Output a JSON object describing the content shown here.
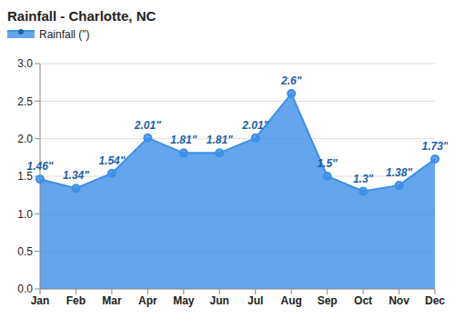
{
  "chart_data": {
    "type": "area",
    "title": "Rainfall - Charlotte, NC",
    "categories": [
      "Jan",
      "Feb",
      "Mar",
      "Apr",
      "May",
      "Jun",
      "Jul",
      "Aug",
      "Sep",
      "Oct",
      "Nov",
      "Dec"
    ],
    "series": [
      {
        "name": "Rainfall (\")",
        "color": "#3d8fe6",
        "values": [
          1.46,
          1.34,
          1.54,
          2.01,
          1.81,
          1.81,
          2.01,
          2.6,
          1.5,
          1.3,
          1.38,
          1.73
        ],
        "value_labels": [
          "1.46\"",
          "1.34\"",
          "1.54\"",
          "2.01\"",
          "1.81\"",
          "1.81\"",
          "2.01\"",
          "2.6\"",
          "1.5\"",
          "1.3\"",
          "1.38\"",
          "1.73\""
        ]
      }
    ],
    "ylim": [
      0,
      3
    ],
    "yticks": [
      {
        "value": 0,
        "label": "0.0"
      },
      {
        "value": 0.5,
        "label": "0.5"
      },
      {
        "value": 1,
        "label": "1.0"
      },
      {
        "value": 1.5,
        "label": "1.5"
      },
      {
        "value": 2,
        "label": "2.0"
      },
      {
        "value": 2.5,
        "label": "2.5"
      },
      {
        "value": 3,
        "label": "3.0"
      }
    ],
    "grid": true,
    "legend": "top-left",
    "data_labels": true
  }
}
